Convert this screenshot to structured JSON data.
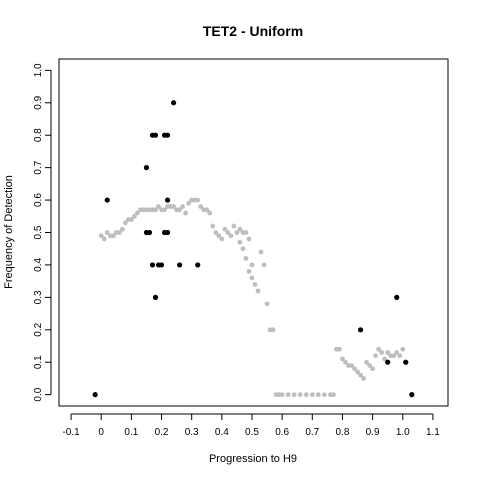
{
  "chart_data": {
    "type": "scatter",
    "title": "TET2 - Uniform",
    "xlabel": "Progression to H9",
    "ylabel": "Frequency of Detection",
    "xlim": [
      -0.14,
      1.15
    ],
    "ylim": [
      -0.035,
      1.035
    ],
    "x_ticks": [
      -0.1,
      0,
      0.1,
      0.2,
      0.3,
      0.4,
      0.5,
      0.6,
      0.7,
      0.8,
      0.9,
      1.0,
      1.1
    ],
    "x_tick_labels": [
      "-0.1",
      "0",
      "0.1",
      "0.2",
      "0.3",
      "0.4",
      "0.5",
      "0.6",
      "0.7",
      "0.8",
      "0.9",
      "1.0",
      "1.1"
    ],
    "y_ticks": [
      0,
      0.1,
      0.2,
      0.3,
      0.4,
      0.5,
      0.6,
      0.7,
      0.8,
      0.9,
      1.0
    ],
    "y_tick_labels": [
      "0.0",
      "0.1",
      "0.2",
      "0.3",
      "0.4",
      "0.5",
      "0.6",
      "0.7",
      "0.8",
      "0.9",
      "1.0"
    ],
    "grid": false,
    "legend": "none",
    "colors": {
      "observed": "#000000",
      "smoothed": "#bebebe"
    },
    "series": [
      {
        "color": "#000000",
        "points": [
          [
            -0.02,
            0.0
          ],
          [
            0.02,
            0.6
          ],
          [
            0.15,
            0.7
          ],
          [
            0.15,
            0.5
          ],
          [
            0.16,
            0.5
          ],
          [
            0.17,
            0.8
          ],
          [
            0.18,
            0.8
          ],
          [
            0.17,
            0.4
          ],
          [
            0.18,
            0.3
          ],
          [
            0.19,
            0.4
          ],
          [
            0.2,
            0.4
          ],
          [
            0.21,
            0.8
          ],
          [
            0.22,
            0.8
          ],
          [
            0.22,
            0.6
          ],
          [
            0.21,
            0.5
          ],
          [
            0.22,
            0.5
          ],
          [
            0.24,
            0.9
          ],
          [
            0.26,
            0.4
          ],
          [
            0.32,
            0.4
          ],
          [
            0.86,
            0.2
          ],
          [
            0.95,
            0.1
          ],
          [
            0.98,
            0.3
          ],
          [
            1.01,
            0.1
          ],
          [
            1.03,
            0.0
          ]
        ]
      },
      {
        "color": "#bebebe",
        "points": [
          [
            0.0,
            0.49
          ],
          [
            0.01,
            0.48
          ],
          [
            0.02,
            0.5
          ],
          [
            0.03,
            0.49
          ],
          [
            0.04,
            0.49
          ],
          [
            0.05,
            0.5
          ],
          [
            0.06,
            0.5
          ],
          [
            0.07,
            0.51
          ],
          [
            0.08,
            0.53
          ],
          [
            0.09,
            0.54
          ],
          [
            0.1,
            0.54
          ],
          [
            0.11,
            0.55
          ],
          [
            0.12,
            0.56
          ],
          [
            0.13,
            0.57
          ],
          [
            0.14,
            0.57
          ],
          [
            0.15,
            0.57
          ],
          [
            0.16,
            0.57
          ],
          [
            0.17,
            0.57
          ],
          [
            0.18,
            0.57
          ],
          [
            0.19,
            0.58
          ],
          [
            0.2,
            0.57
          ],
          [
            0.21,
            0.57
          ],
          [
            0.22,
            0.58
          ],
          [
            0.23,
            0.58
          ],
          [
            0.24,
            0.58
          ],
          [
            0.25,
            0.57
          ],
          [
            0.26,
            0.57
          ],
          [
            0.27,
            0.58
          ],
          [
            0.28,
            0.56
          ],
          [
            0.29,
            0.59
          ],
          [
            0.3,
            0.6
          ],
          [
            0.31,
            0.6
          ],
          [
            0.32,
            0.6
          ],
          [
            0.33,
            0.58
          ],
          [
            0.34,
            0.57
          ],
          [
            0.35,
            0.57
          ],
          [
            0.36,
            0.56
          ],
          [
            0.37,
            0.52
          ],
          [
            0.38,
            0.5
          ],
          [
            0.39,
            0.49
          ],
          [
            0.4,
            0.48
          ],
          [
            0.41,
            0.51
          ],
          [
            0.42,
            0.5
          ],
          [
            0.43,
            0.49
          ],
          [
            0.44,
            0.52
          ],
          [
            0.45,
            0.5
          ],
          [
            0.46,
            0.51
          ],
          [
            0.47,
            0.5
          ],
          [
            0.48,
            0.5
          ],
          [
            0.49,
            0.48
          ],
          [
            0.46,
            0.47
          ],
          [
            0.47,
            0.45
          ],
          [
            0.48,
            0.42
          ],
          [
            0.5,
            0.4
          ],
          [
            0.49,
            0.38
          ],
          [
            0.5,
            0.36
          ],
          [
            0.51,
            0.34
          ],
          [
            0.52,
            0.32
          ],
          [
            0.53,
            0.44
          ],
          [
            0.54,
            0.4
          ],
          [
            0.55,
            0.28
          ],
          [
            0.56,
            0.2
          ],
          [
            0.57,
            0.2
          ],
          [
            0.58,
            0.0
          ],
          [
            0.59,
            0.0
          ],
          [
            0.6,
            0.0
          ],
          [
            0.62,
            0.0
          ],
          [
            0.64,
            0.0
          ],
          [
            0.66,
            0.0
          ],
          [
            0.68,
            0.0
          ],
          [
            0.7,
            0.0
          ],
          [
            0.72,
            0.0
          ],
          [
            0.74,
            0.0
          ],
          [
            0.76,
            0.0
          ],
          [
            0.77,
            0.0
          ],
          [
            0.78,
            0.14
          ],
          [
            0.79,
            0.14
          ],
          [
            0.8,
            0.11
          ],
          [
            0.81,
            0.1
          ],
          [
            0.82,
            0.09
          ],
          [
            0.83,
            0.09
          ],
          [
            0.84,
            0.08
          ],
          [
            0.85,
            0.07
          ],
          [
            0.86,
            0.06
          ],
          [
            0.87,
            0.05
          ],
          [
            0.88,
            0.1
          ],
          [
            0.89,
            0.09
          ],
          [
            0.9,
            0.08
          ],
          [
            0.91,
            0.12
          ],
          [
            0.92,
            0.14
          ],
          [
            0.93,
            0.13
          ],
          [
            0.94,
            0.11
          ],
          [
            0.95,
            0.13
          ],
          [
            0.96,
            0.12
          ],
          [
            0.97,
            0.12
          ],
          [
            0.98,
            0.13
          ],
          [
            0.99,
            0.12
          ],
          [
            1.0,
            0.14
          ]
        ]
      }
    ]
  }
}
